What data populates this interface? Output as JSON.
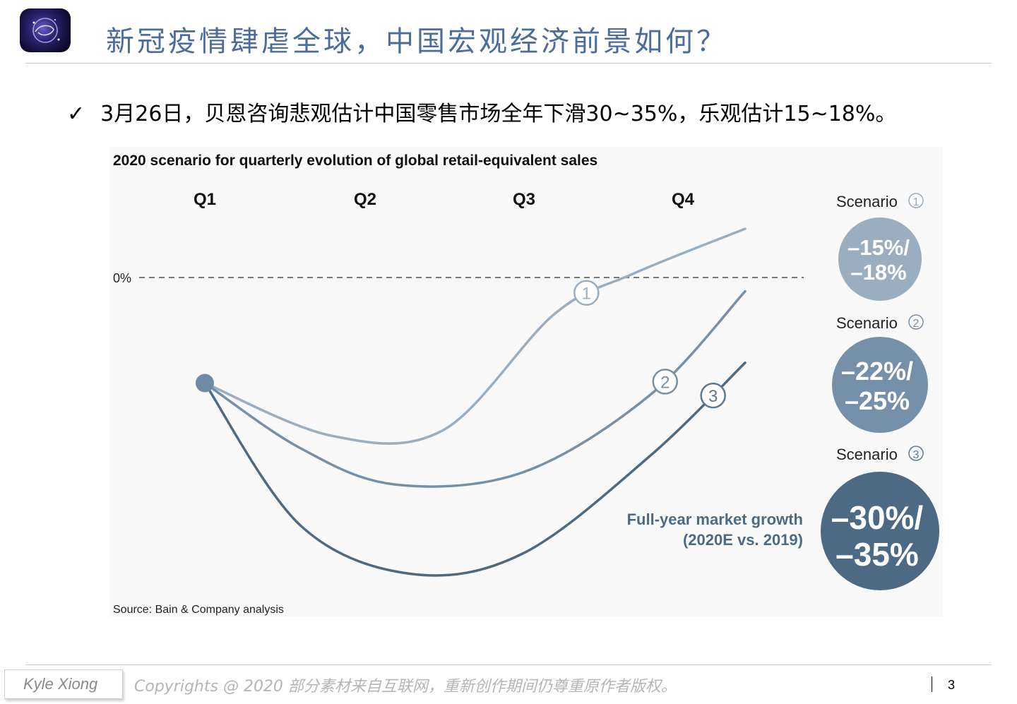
{
  "header": {
    "title": "新冠疫情肆虐全球，中国宏观经济前景如何？"
  },
  "bullet": {
    "check": "✓",
    "text": "3月26日，贝恩咨询悲观估计中国零售市场全年下滑30~35%，乐观估计15~18%。"
  },
  "chart_data": {
    "type": "line",
    "title": "2020 scenario for quarterly evolution of global retail-equivalent sales",
    "categories": [
      "Q1",
      "Q2",
      "Q3",
      "Q4"
    ],
    "baseline_label": "0%",
    "series": [
      {
        "name": "Scenario 1",
        "marker": "1",
        "color": "#9aaebf",
        "growth_lines": [
          "–15%/",
          "–18%"
        ],
        "points": [
          [
            0.0,
            -1.3
          ],
          [
            0.8,
            -1.95
          ],
          [
            1.5,
            -1.88
          ],
          [
            2.2,
            -0.45
          ],
          [
            2.7,
            0.05
          ],
          [
            3.4,
            0.6
          ]
        ]
      },
      {
        "name": "Scenario 2",
        "marker": "2",
        "color": "#7690a9",
        "growth_lines": [
          "–22%/",
          "–25%"
        ],
        "points": [
          [
            0.0,
            -1.3
          ],
          [
            0.6,
            -2.1
          ],
          [
            1.2,
            -2.55
          ],
          [
            2.0,
            -2.4
          ],
          [
            2.8,
            -1.45
          ],
          [
            3.4,
            -0.17
          ]
        ]
      },
      {
        "name": "Scenario 3",
        "marker": "3",
        "color": "#5b7892",
        "growth_lines": [
          "–30%/",
          "–35%"
        ],
        "points": [
          [
            0.0,
            -1.3
          ],
          [
            0.6,
            -3.05
          ],
          [
            1.3,
            -3.65
          ],
          [
            2.0,
            -3.4
          ],
          [
            2.8,
            -2.2
          ],
          [
            3.4,
            -1.05
          ]
        ]
      }
    ],
    "line_color": "#4d6a84",
    "annotation": [
      "Full-year market growth",
      "(2020E vs. 2019)"
    ],
    "scenario_label": "Scenario",
    "source": "Source: Bain & Company analysis"
  },
  "footer": {
    "name": "Kyle Xiong",
    "copyright": "Copyrights @ 2020 部分素材来自互联网，重新创作期间仍尊重原作者版权。",
    "page": "3"
  }
}
